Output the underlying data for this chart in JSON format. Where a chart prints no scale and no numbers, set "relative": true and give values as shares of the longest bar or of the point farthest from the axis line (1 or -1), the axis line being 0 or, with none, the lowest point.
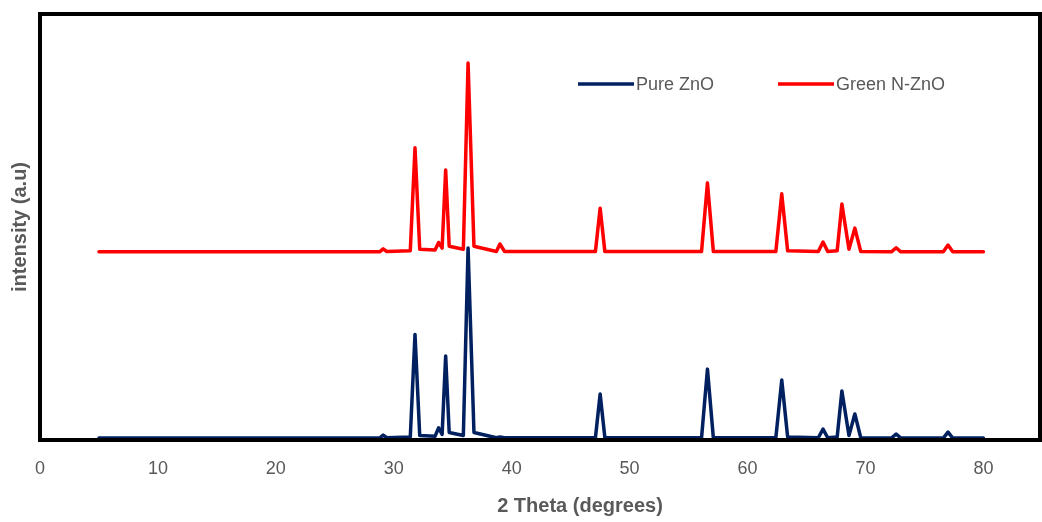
{
  "chart_data": {
    "type": "line",
    "xlabel": "2 Theta (degrees)",
    "ylabel": "intensity (a.u)",
    "relative": true,
    "xlim": [
      0,
      84.8
    ],
    "xticks": [
      0,
      10,
      20,
      30,
      40,
      50,
      60,
      70,
      80
    ],
    "tick_labels": "x",
    "legend": "top right",
    "grid": false,
    "line_style": "solid",
    "x": [
      5,
      28.8,
      29.1,
      29.4,
      31.4,
      31.8,
      32.2,
      33.5,
      33.8,
      34.1,
      34.4,
      34.7,
      35.9,
      36.3,
      36.8,
      38.7,
      39.0,
      39.4,
      47.1,
      47.5,
      47.9,
      56.1,
      56.6,
      57.1,
      62.4,
      62.9,
      63.4,
      66.0,
      66.4,
      66.8,
      67.6,
      68.0,
      68.6,
      69.1,
      69.6,
      72.2,
      72.6,
      73.0,
      76.6,
      77.0,
      77.4,
      80
    ],
    "series": [
      {
        "name": "Pure ZnO",
        "color": "#002060",
        "values": [
          0.005,
          0.005,
          0.013,
          0.006,
          0.008,
          0.28,
          0.012,
          0.01,
          0.032,
          0.015,
          0.223,
          0.02,
          0.012,
          0.509,
          0.02,
          0.006,
          0.008,
          0.006,
          0.006,
          0.122,
          0.006,
          0.006,
          0.188,
          0.006,
          0.006,
          0.159,
          0.008,
          0.006,
          0.029,
          0.006,
          0.008,
          0.13,
          0.012,
          0.069,
          0.006,
          0.005,
          0.016,
          0.005,
          0.005,
          0.021,
          0.005,
          0.005
        ]
      },
      {
        "name": "Green N-ZnO",
        "color": "#ff0000",
        "values": [
          0.499,
          0.499,
          0.507,
          0.5,
          0.502,
          0.775,
          0.506,
          0.504,
          0.524,
          0.509,
          0.716,
          0.514,
          0.506,
          1,
          0.514,
          0.5,
          0.52,
          0.5,
          0.5,
          0.615,
          0.5,
          0.5,
          0.682,
          0.5,
          0.5,
          0.653,
          0.502,
          0.5,
          0.525,
          0.5,
          0.502,
          0.626,
          0.506,
          0.562,
          0.5,
          0.499,
          0.51,
          0.499,
          0.499,
          0.517,
          0.499,
          0.499
        ]
      }
    ]
  }
}
